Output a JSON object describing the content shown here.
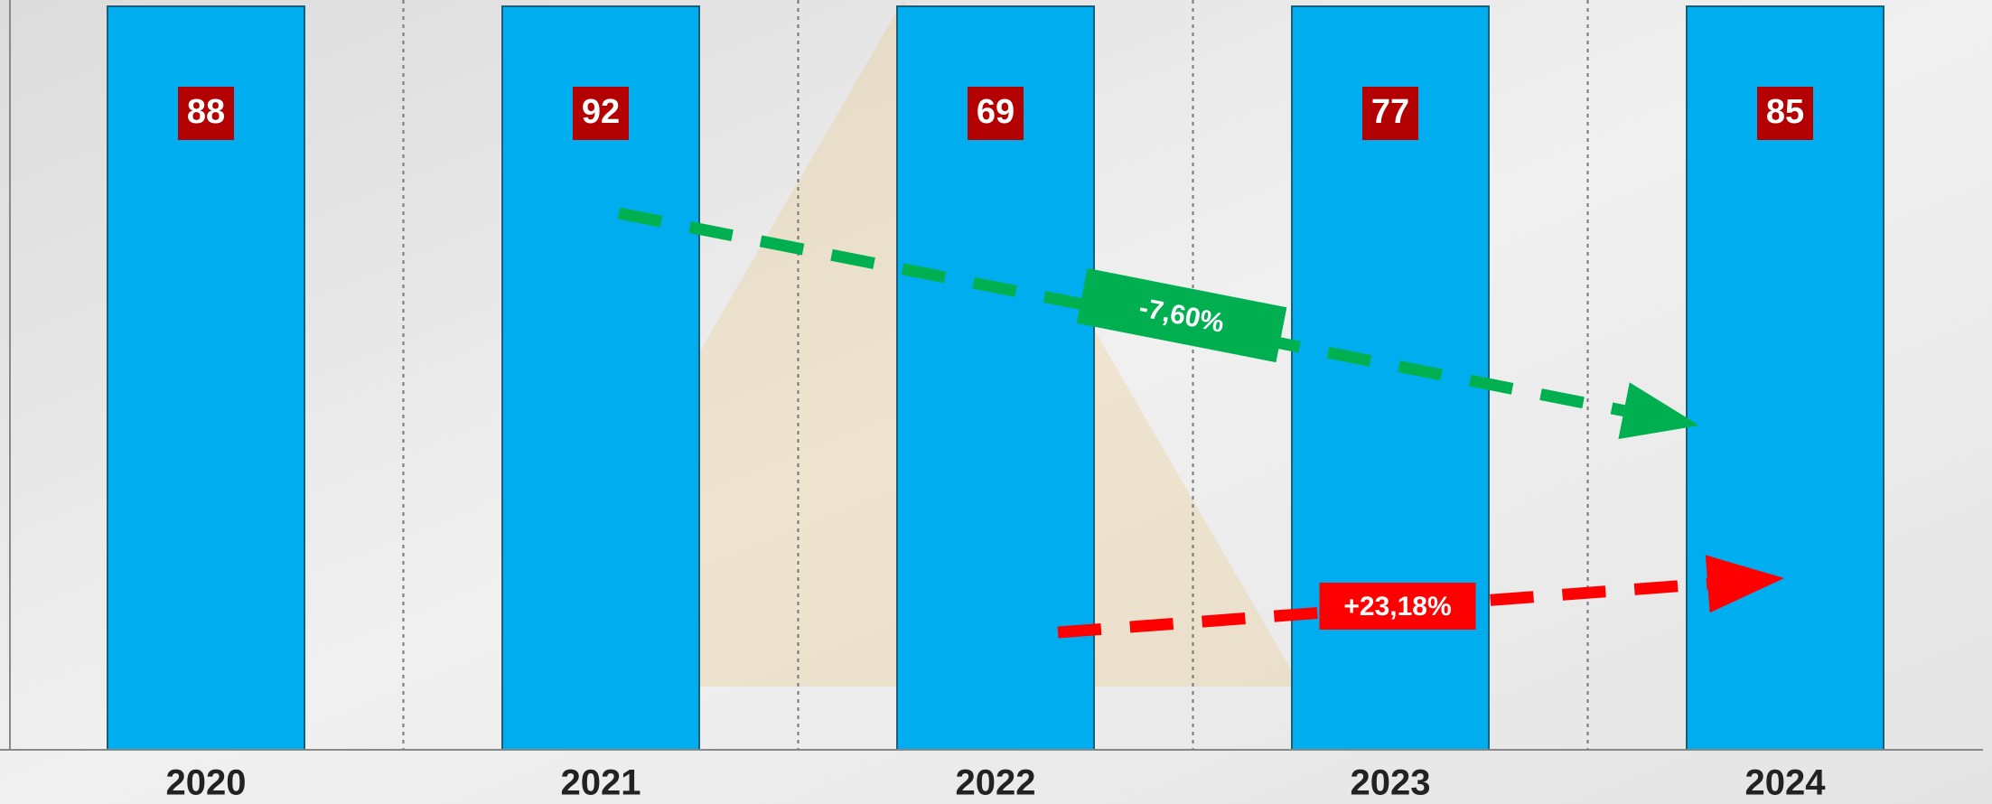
{
  "chart_data": {
    "type": "bar",
    "categories": [
      "2020",
      "2021",
      "2022",
      "2023",
      "2024"
    ],
    "values": [
      88,
      92,
      69,
      77,
      85
    ],
    "color": "#00aeef",
    "label_color": "#b30000",
    "annotations": [
      {
        "text": "-7,60%",
        "color": "#00b050"
      },
      {
        "text": "+23,18%",
        "color": "#ff0000"
      }
    ]
  }
}
